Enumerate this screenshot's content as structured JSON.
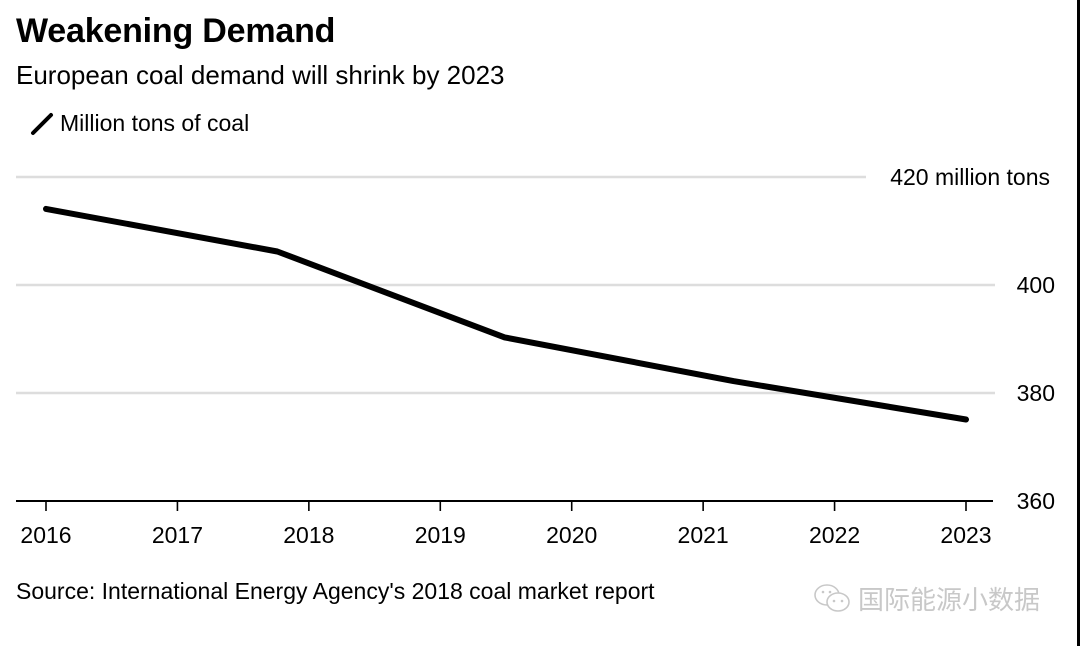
{
  "header": {
    "title": "Weakening Demand",
    "subtitle": "European coal demand will shrink by 2023"
  },
  "legend": {
    "label": "Million tons of coal"
  },
  "footer": {
    "source": "Source: International Energy Agency's 2018 coal market report",
    "watermark": "国际能源小数据"
  },
  "chart_data": {
    "type": "line",
    "title": "Weakening Demand",
    "subtitle": "European coal demand will shrink by 2023",
    "xlabel": "",
    "ylabel": "Million tons of coal",
    "xlim": [
      2016,
      2023
    ],
    "ylim": [
      360,
      420
    ],
    "x_ticks": [
      2016,
      2017,
      2018,
      2019,
      2020,
      2021,
      2022,
      2023
    ],
    "x_tick_labels": [
      "2016",
      "2017",
      "2018",
      "2019",
      "2020",
      "2021",
      "2022",
      "2023"
    ],
    "y_ticks": [
      360,
      380,
      400,
      420
    ],
    "y_tick_labels": [
      "360",
      "380",
      "400",
      "420 million tons"
    ],
    "grid": true,
    "legend_position": "top-left",
    "colors": {
      "line": "#000000",
      "grid": "#dddddd",
      "axis": "#000000"
    },
    "series": [
      {
        "name": "Million tons of coal",
        "x": [
          2016.0,
          2017.76,
          2019.49,
          2021.23,
          2023.0
        ],
        "values": [
          414.1,
          406.2,
          390.3,
          382.2,
          375.1
        ]
      }
    ]
  }
}
